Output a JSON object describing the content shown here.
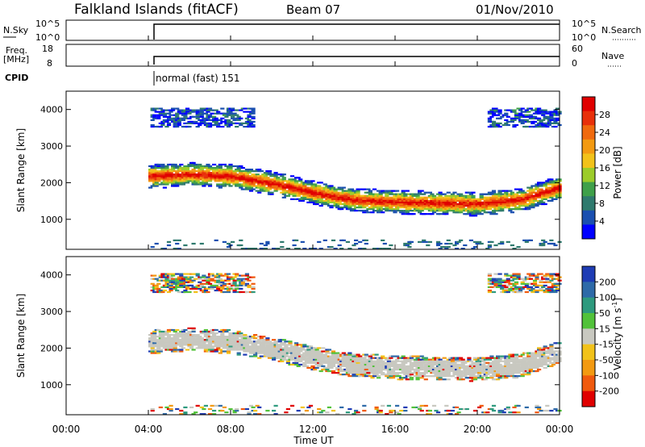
{
  "header": {
    "station": "Falkland Islands (fitACF)",
    "beam": "Beam 07",
    "date": "01/Nov/2010"
  },
  "sky_panel": {
    "left_label": "N.Sky",
    "left_ticks": [
      "10^5",
      "10^0"
    ],
    "right_label": "N.Search",
    "right_ticks": [
      "10^5",
      "10^0"
    ]
  },
  "freq_panel": {
    "left_label_1": "Freq.",
    "left_label_2": "[MHz]",
    "left_ticks": [
      "18",
      "8"
    ],
    "right_label": "Nave",
    "right_ticks": [
      "60",
      "0"
    ]
  },
  "cpid": {
    "label": "CPID",
    "mode_text": "normal (fast) 151"
  },
  "chart_data": [
    {
      "type": "heatmap",
      "panel": "power",
      "ylabel": "Slant Range [km]",
      "ylim": [
        180,
        4500
      ],
      "yticks": [
        "1000",
        "2000",
        "3000",
        "4000"
      ],
      "colorbar_label": "Power [dB]",
      "colorbar_ticks": [
        "4",
        "8",
        "12",
        "16",
        "20",
        "24",
        "28"
      ],
      "colorbar_colors": [
        "#0000ff",
        "#1a4fb0",
        "#2f7a6e",
        "#3fa04a",
        "#9ccc2a",
        "#f2c21a",
        "#f39a12",
        "#f06a0e",
        "#e8300a",
        "#e00000"
      ],
      "data_start_hour": 4,
      "regions": [
        {
          "name": "main band",
          "start": 4.0,
          "end": 24.0,
          "center_km": [
            2150,
            2200,
            2150,
            1950,
            1700,
            1500,
            1450,
            1420,
            1400,
            1500,
            1850
          ],
          "width_km": 650
        }
      ]
    },
    {
      "type": "heatmap",
      "panel": "velocity",
      "ylabel": "Slant Range [km]",
      "ylim": [
        180,
        4500
      ],
      "yticks": [
        "1000",
        "2000",
        "3000",
        "4000"
      ],
      "colorbar_label": "Velocity [m s",
      "colorbar_label_sup": "-1",
      "colorbar_ticks": [
        "200",
        "100",
        "50",
        "15",
        "-15",
        "-50",
        "-100",
        "-200"
      ],
      "colorbar_colors": [
        "#1e3cb4",
        "#2e6aa8",
        "#2e9a7e",
        "#52c23a",
        "#c8c8c0",
        "#f2c21a",
        "#f39a12",
        "#f05a0e",
        "#e00000"
      ]
    }
  ],
  "x_axis": {
    "label": "Time UT",
    "ticks": [
      "00:00",
      "04:00",
      "08:00",
      "12:00",
      "16:00",
      "20:00",
      "00:00"
    ],
    "range_hours": [
      0,
      24
    ]
  }
}
